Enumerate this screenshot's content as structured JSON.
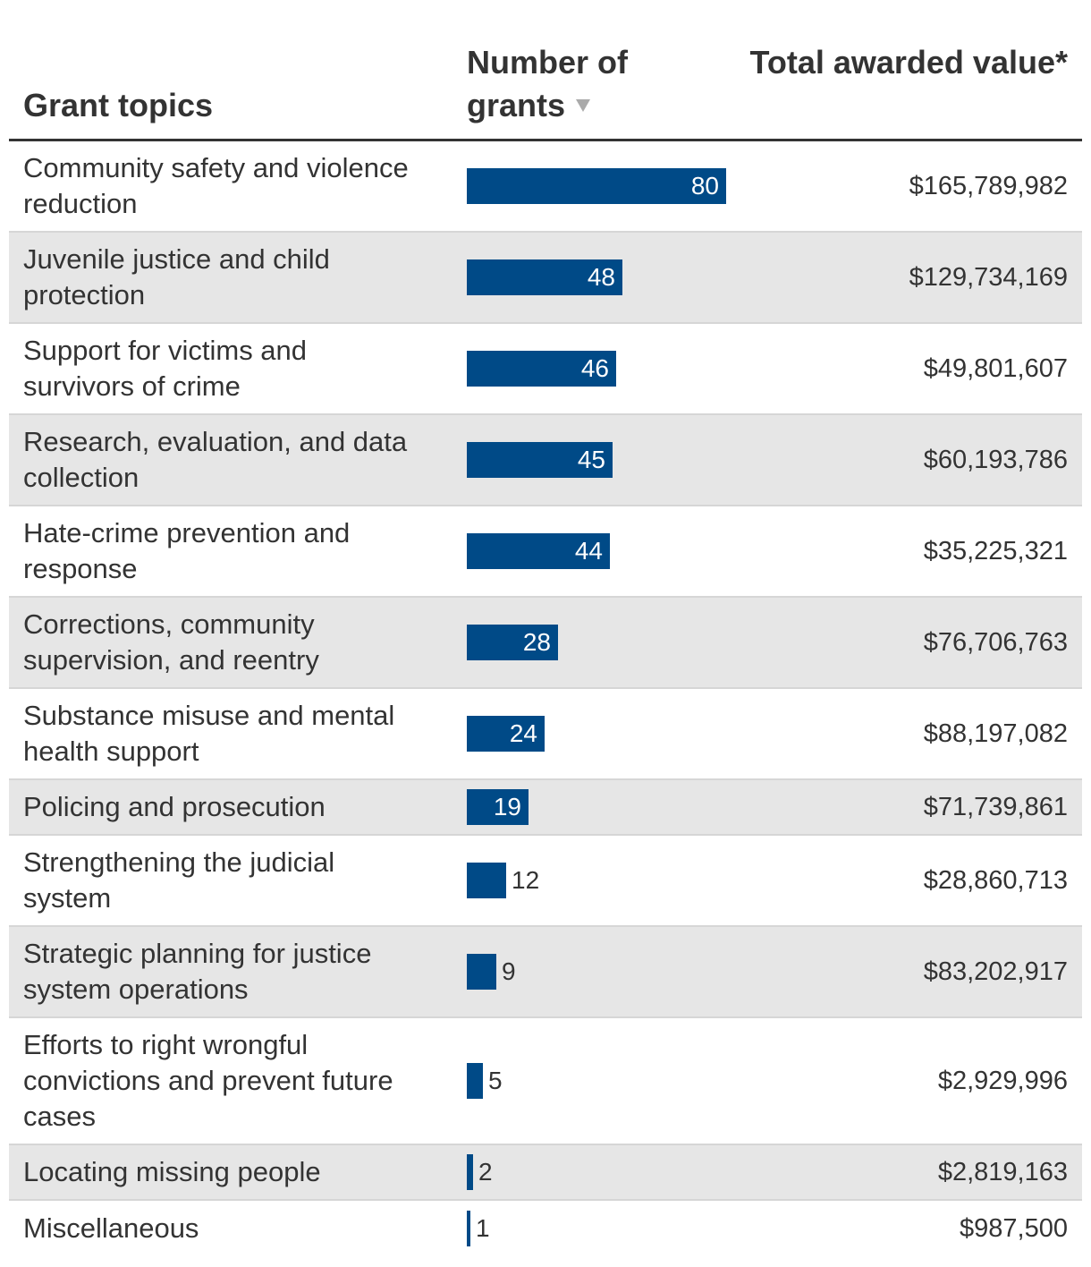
{
  "header": {
    "topic_label": "Grant topics",
    "count_label": "Number of grants",
    "value_label": "Total awarded value*"
  },
  "colors": {
    "bar": "#004a87",
    "shade": "#e6e6e6",
    "text": "#333333"
  },
  "chart_data": {
    "type": "bar",
    "title": "",
    "xlabel": "Number of grants",
    "ylabel": "Grant topics",
    "sort": "descending by number of grants",
    "xlim": [
      0,
      80
    ],
    "categories": [
      "Community safety and violence reduction",
      "Juvenile justice and child protection",
      "Support for victims and survivors of crime",
      "Research, evaluation, and data collection",
      "Hate-crime prevention and response",
      "Corrections, community supervision, and reentry",
      "Substance misuse and mental health support",
      "Policing and prosecution",
      "Strengthening the judicial system",
      "Strategic planning for justice system operations",
      "Efforts to right wrongful convictions and prevent future cases",
      "Locating missing people",
      "Miscellaneous"
    ],
    "series": [
      {
        "name": "Number of grants",
        "values": [
          80,
          48,
          46,
          45,
          44,
          28,
          24,
          19,
          12,
          9,
          5,
          2,
          1
        ]
      }
    ],
    "awarded_values": [
      "$165,789,982",
      "$129,734,169",
      "$49,801,607",
      "$60,193,786",
      "$35,225,321",
      "$76,706,763",
      "$88,197,082",
      "$71,739,861",
      "$28,860,713",
      "$83,202,917",
      "$2,929,996",
      "$2,819,163",
      "$987,500"
    ]
  }
}
